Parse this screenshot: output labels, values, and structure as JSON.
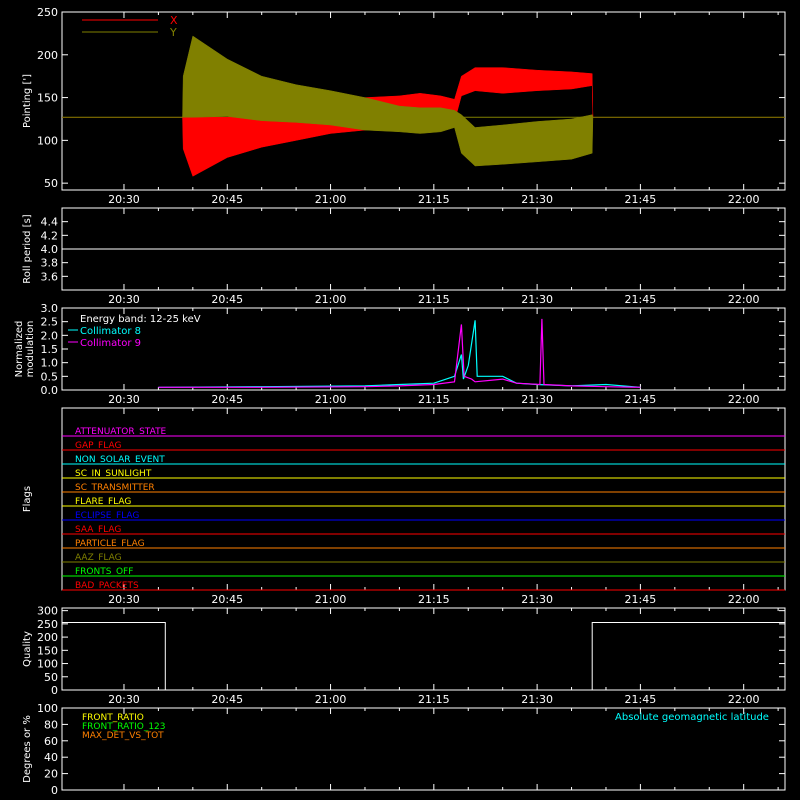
{
  "colors": {
    "background": "#000000",
    "axes": "#ffffff",
    "x_series": "#ff0000",
    "y_series": "#808000",
    "collimator8": "#00ffff",
    "collimator9": "#ff00ff",
    "quality": "#ffffff"
  },
  "time_axis": {
    "ticks": [
      "20:30",
      "20:45",
      "21:00",
      "21:15",
      "21:30",
      "21:45",
      "22:00"
    ],
    "tick_minutes": [
      1230,
      1245,
      1260,
      1275,
      1290,
      1305,
      1320
    ],
    "range_minutes": [
      1221,
      1326
    ]
  },
  "chart_data": [
    {
      "type": "area",
      "ylabel": "Pointing [']",
      "ylim": [
        42,
        250
      ],
      "yticks": [
        "50",
        "100",
        "150",
        "200",
        "250"
      ],
      "ytick_values": [
        50,
        100,
        150,
        200,
        250
      ],
      "legend_position": "top-left",
      "series": [
        {
          "name": "X",
          "color": "#ff0000",
          "x": [
            1221,
            1238.5,
            1238.6,
            1240,
            1245,
            1250,
            1255,
            1260,
            1265,
            1270,
            1273,
            1276,
            1278,
            1279,
            1281,
            1285,
            1290,
            1295,
            1298,
            1298.1,
            1326
          ],
          "low": [
            127,
            127,
            90,
            58,
            80,
            92,
            100,
            108,
            112,
            116,
            118,
            120,
            122,
            152,
            158,
            155,
            158,
            160,
            164,
            127,
            127
          ],
          "high": [
            127,
            127,
            127,
            127,
            127,
            130,
            135,
            140,
            150,
            152,
            155,
            152,
            148,
            175,
            185,
            185,
            182,
            180,
            178,
            127,
            127
          ]
        },
        {
          "name": "Y",
          "color": "#808000",
          "x": [
            1221,
            1238.5,
            1238.6,
            1240,
            1245,
            1250,
            1255,
            1260,
            1265,
            1270,
            1273,
            1276,
            1278,
            1279,
            1281,
            1285,
            1290,
            1295,
            1298,
            1298.1,
            1326
          ],
          "low": [
            127,
            127,
            127,
            127,
            128,
            123,
            121,
            118,
            112,
            110,
            108,
            110,
            115,
            85,
            70,
            72,
            75,
            78,
            85,
            127,
            127
          ],
          "high": [
            127,
            127,
            175,
            222,
            195,
            175,
            165,
            158,
            150,
            140,
            138,
            138,
            135,
            130,
            115,
            118,
            122,
            125,
            130,
            127,
            127
          ]
        }
      ]
    },
    {
      "type": "line",
      "ylabel": "Roll period [s]",
      "ylim": [
        3.4,
        4.6
      ],
      "yticks": [
        "3.6",
        "3.8",
        "4.0",
        "4.2",
        "4.4"
      ],
      "ytick_values": [
        3.6,
        3.8,
        4.0,
        4.2,
        4.4
      ],
      "series": [
        {
          "x": [
            1221,
            1326
          ],
          "y": [
            4.0,
            4.0
          ]
        }
      ]
    },
    {
      "type": "line",
      "ylabel": "Normalized\nmodulation",
      "ylabel_lines": [
        "Normalized",
        "modulation"
      ],
      "ylim": [
        0,
        3.0
      ],
      "yticks": [
        "0.0",
        "0.5",
        "1.0",
        "1.5",
        "2.0",
        "2.5",
        "3.0"
      ],
      "ytick_values": [
        0,
        0.5,
        1.0,
        1.5,
        2.0,
        2.5,
        3.0
      ],
      "annotation": "Energy band: 12-25 keV",
      "series": [
        {
          "name": "Collimator 8",
          "color": "#00ffff",
          "x": [
            1235,
            1250,
            1265,
            1270,
            1275,
            1278,
            1279,
            1279.3,
            1280,
            1281,
            1281.3,
            1282,
            1285,
            1287,
            1290,
            1295,
            1300,
            1305
          ],
          "y": [
            0.1,
            0.12,
            0.15,
            0.2,
            0.25,
            0.5,
            1.3,
            0.4,
            0.9,
            2.55,
            0.5,
            0.5,
            0.5,
            0.25,
            0.2,
            0.15,
            0.2,
            0.1
          ]
        },
        {
          "name": "Collimator 9",
          "color": "#ff00ff",
          "x": [
            1235,
            1250,
            1265,
            1270,
            1275,
            1278,
            1279,
            1279.4,
            1280.5,
            1281,
            1285,
            1287,
            1290.4,
            1290.7,
            1291,
            1295,
            1300,
            1305
          ],
          "y": [
            0.1,
            0.1,
            0.12,
            0.15,
            0.2,
            0.3,
            2.4,
            0.5,
            0.4,
            0.3,
            0.4,
            0.25,
            0.2,
            2.6,
            0.2,
            0.15,
            0.12,
            0.1
          ]
        }
      ]
    },
    {
      "type": "line",
      "ylabel": "Flags",
      "flags": [
        {
          "name": "ATTENUATOR_STATE",
          "color": "#ff00ff"
        },
        {
          "name": "GAP_FLAG",
          "color": "#ff0000"
        },
        {
          "name": "NON_SOLAR_EVENT",
          "color": "#00ffff"
        },
        {
          "name": "SC_IN_SUNLIGHT",
          "color": "#ffff00"
        },
        {
          "name": "SC_TRANSMITTER",
          "color": "#ff8000"
        },
        {
          "name": "FLARE_FLAG",
          "color": "#ffff00"
        },
        {
          "name": "ECLIPSE_FLAG",
          "color": "#0000ff"
        },
        {
          "name": "SAA_FLAG",
          "color": "#ff0000"
        },
        {
          "name": "PARTICLE_FLAG",
          "color": "#ff8000"
        },
        {
          "name": "AAZ_FLAG",
          "color": "#808000"
        },
        {
          "name": "FRONTS_OFF",
          "color": "#00ff00"
        },
        {
          "name": "BAD_PACKETS",
          "color": "#ff0000"
        }
      ]
    },
    {
      "type": "line",
      "ylabel": "Quality",
      "ylim": [
        0,
        310
      ],
      "yticks": [
        "0",
        "50",
        "100",
        "150",
        "200",
        "250",
        "300"
      ],
      "ytick_values": [
        0,
        50,
        100,
        150,
        200,
        250,
        300
      ],
      "series": [
        {
          "x": [
            1221,
            1236,
            1236,
            1241,
            1241,
            1298,
            1298,
            1326
          ],
          "y": [
            255,
            255,
            0,
            0,
            0,
            0,
            255,
            255
          ]
        }
      ]
    },
    {
      "type": "line",
      "ylabel": "Degrees or %",
      "ylim": [
        0,
        100
      ],
      "yticks": [
        "0",
        "20",
        "40",
        "60",
        "80",
        "100"
      ],
      "ytick_values": [
        0,
        20,
        40,
        60,
        80,
        100
      ],
      "annotation": "Absolute geomagnetic latitude",
      "series": [
        {
          "name": "FRONT_RATIO",
          "color": "#ffff00"
        },
        {
          "name": "FRONT_RATIO_123",
          "color": "#00ff00"
        },
        {
          "name": "MAX_DET_VS_TOT",
          "color": "#ff8000"
        },
        {
          "name": "",
          "color": "#00ffff"
        }
      ]
    }
  ]
}
